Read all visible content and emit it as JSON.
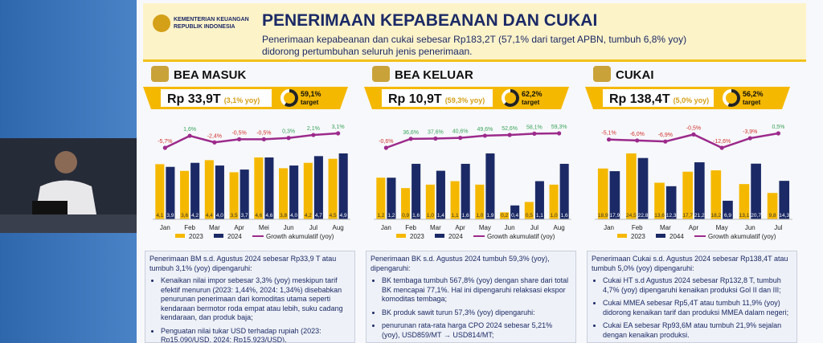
{
  "header": {
    "org": "KEMENTERIAN KEUANGAN",
    "org_sub": "REPUBLIK INDONESIA",
    "title": "PENERIMAAN KEPABEANAN DAN CUKAI",
    "subtitle": "Penerimaan kepabeanan dan cukai sebesar Rp183,2T (57,1% dari target APBN, tumbuh 6,8% yoy) didorong pertumbuhan seluruh jenis penerimaan."
  },
  "chart_data": [
    {
      "type": "bar",
      "title": "BEA MASUK",
      "total": "Rp 33,9T",
      "growth": "(3,1% yoy)",
      "target": 59.1,
      "target_label": "59,1%",
      "target_text": "target",
      "categories": [
        "Jan",
        "Feb",
        "Mar",
        "Apr",
        "Mei",
        "Jun",
        "Jul",
        "Aug"
      ],
      "series": [
        {
          "name": "2023",
          "color": "#f5b800",
          "values": [
            4.1,
            3.6,
            4.4,
            3.5,
            4.6,
            3.8,
            4.2,
            4.5
          ],
          "value_labels": [
            "4,1",
            "3,6",
            "4,4",
            "3,5",
            "4,6",
            "3,8",
            "4,2",
            "4,5"
          ]
        },
        {
          "name": "2024",
          "color": "#1b2a66",
          "values": [
            3.9,
            4.2,
            4.0,
            3.7,
            4.6,
            4.0,
            4.7,
            4.9
          ],
          "value_labels": [
            "3,9",
            "4,2",
            "4,0",
            "3,7",
            "4,6",
            "4,0",
            "4,7",
            "4,9"
          ]
        },
        {
          "name": "Growth akumulatif (yoy)",
          "color": "#9c2a8c",
          "type": "line",
          "axis": "y2",
          "values": [
            -5.7,
            1.6,
            -2.4,
            -0.5,
            -0.5,
            0.3,
            2.1,
            3.1
          ],
          "value_labels": [
            "-5,7%",
            "1,6%",
            "-2,4%",
            "-0,5%",
            "-0,5%",
            "0,3%",
            "2,1%",
            "3,1%"
          ]
        }
      ]
    },
    {
      "type": "bar",
      "title": "BEA KELUAR",
      "total": "Rp 10,9T",
      "growth": "(59,3% yoy)",
      "target": 62.2,
      "target_label": "62,2%",
      "target_text": "target",
      "categories": [
        "Jan",
        "Feb",
        "Mar",
        "Apr",
        "May",
        "Jun",
        "Jul",
        "Aug"
      ],
      "series": [
        {
          "name": "2023",
          "color": "#f5b800",
          "values": [
            1.2,
            0.9,
            1.0,
            1.1,
            1.0,
            0.2,
            0.5,
            1.0
          ],
          "value_labels": [
            "1,2",
            "0,9",
            "1,0",
            "1,1",
            "1,0",
            "0,2",
            "0,5",
            "1,0"
          ]
        },
        {
          "name": "2024",
          "color": "#1b2a66",
          "values": [
            1.2,
            1.6,
            1.4,
            1.6,
            1.9,
            0.4,
            1.1,
            1.6
          ],
          "value_labels": [
            "1,2",
            "1,6",
            "1,4",
            "1,6",
            "1,9",
            "0,4",
            "1,1",
            "1,6"
          ]
        },
        {
          "name": "Growth akumulatif (yoy)",
          "color": "#9c2a8c",
          "type": "line",
          "axis": "y2",
          "values": [
            -0.6,
            36.6,
            37.6,
            40.6,
            49.6,
            52.6,
            58.1,
            59.3
          ],
          "value_labels": [
            "-0,6%",
            "36,6%",
            "37,6%",
            "40,6%",
            "49,6%",
            "52,6%",
            "58,1%",
            "59,3%"
          ]
        }
      ]
    },
    {
      "type": "bar",
      "title": "CUKAI",
      "total": "Rp 138,4T",
      "growth": "(5,0% yoy)",
      "target": 56.2,
      "target_label": "56,2%",
      "target_text": "target",
      "categories": [
        "Jan",
        "Feb",
        "Mar",
        "Apr",
        "May",
        "Jun",
        "Jul"
      ],
      "series": [
        {
          "name": "2023",
          "color": "#f5b800",
          "values": [
            18.9,
            24.5,
            13.6,
            17.7,
            18.2,
            13.1,
            9.8
          ],
          "value_labels": [
            "18,9",
            "24,5",
            "13,6",
            "17,7",
            "18,2",
            "13,1",
            "9,8"
          ]
        },
        {
          "name": "2044",
          "color": "#1b2a66",
          "values": [
            17.9,
            22.8,
            12.3,
            21.2,
            6.9,
            20.7,
            14.3
          ],
          "value_labels": [
            "17,9",
            "22,8",
            "12,3",
            "21,2",
            "6,9",
            "20,7",
            "14,3"
          ]
        },
        {
          "name": "Growth akumulatif (yoy)",
          "color": "#9c2a8c",
          "type": "line",
          "axis": "y2",
          "values": [
            -5.1,
            -6.0,
            -6.9,
            -0.5,
            -12.6,
            -3.9,
            0.5
          ],
          "value_labels": [
            "-5,1%",
            "-6,0%",
            "-6,9%",
            "-0,5%",
            "-12,6%",
            "-3,9%",
            "0,5%"
          ]
        }
      ]
    }
  ],
  "notes": [
    {
      "intro": "Penerimaan BM s.d. Agustus 2024 sebesar Rp33,9 T atau tumbuh 3,1% (yoy) dipengaruhi:",
      "bullets": [
        "Kenaikan nilai impor sebesar 3,3% (yoy) meskipun tarif efektif menurun (2023: 1,44%, 2024: 1,34%) disebabkan penurunan penerimaan dari komoditas utama seperti kendaraan bermotor roda empat atau lebih, suku cadang kendaraan, dan produk baja;",
        "Penguatan nilai tukar USD terhadap rupiah (2023: Rp15.090/USD, 2024: Rp15.923/USD)."
      ]
    },
    {
      "intro": "Penerimaan BK s.d. Agustus 2024 tumbuh 59,3% (yoy), dipengaruhi:",
      "bullets": [
        "BK tembaga tumbuh 567,8% (yoy) dengan share dari total BK mencapai 77,1%. Hal ini dipengaruhi relaksasi ekspor komoditas tembaga;",
        "BK produk sawit turun 57,3% (yoy) dipengaruhi:",
        "penurunan rata-rata harga CPO 2024 sebesar 5,21% (yoy), USD859/MT → USD814/MT;"
      ]
    },
    {
      "intro": "Penerimaan Cukai s.d. Agustus 2024 sebesar Rp138,4T atau tumbuh 5,0% (yoy) dipengaruhi:",
      "bullets": [
        "Cukai HT s.d Agustus 2024 sebesar Rp132,8 T, tumbuh 4,7% (yoy) dipengaruhi kenaikan produksi Gol II dan III;",
        "Cukai MMEA sebesar Rp5,4T atau tumbuh 11,9% (yoy) didorong kenaikan tarif dan produksi MMEA dalam negeri;",
        "Cukai EA sebesar Rp93,6M atau tumbuh 21,9% sejalan dengan kenaikan produksi."
      ]
    }
  ]
}
